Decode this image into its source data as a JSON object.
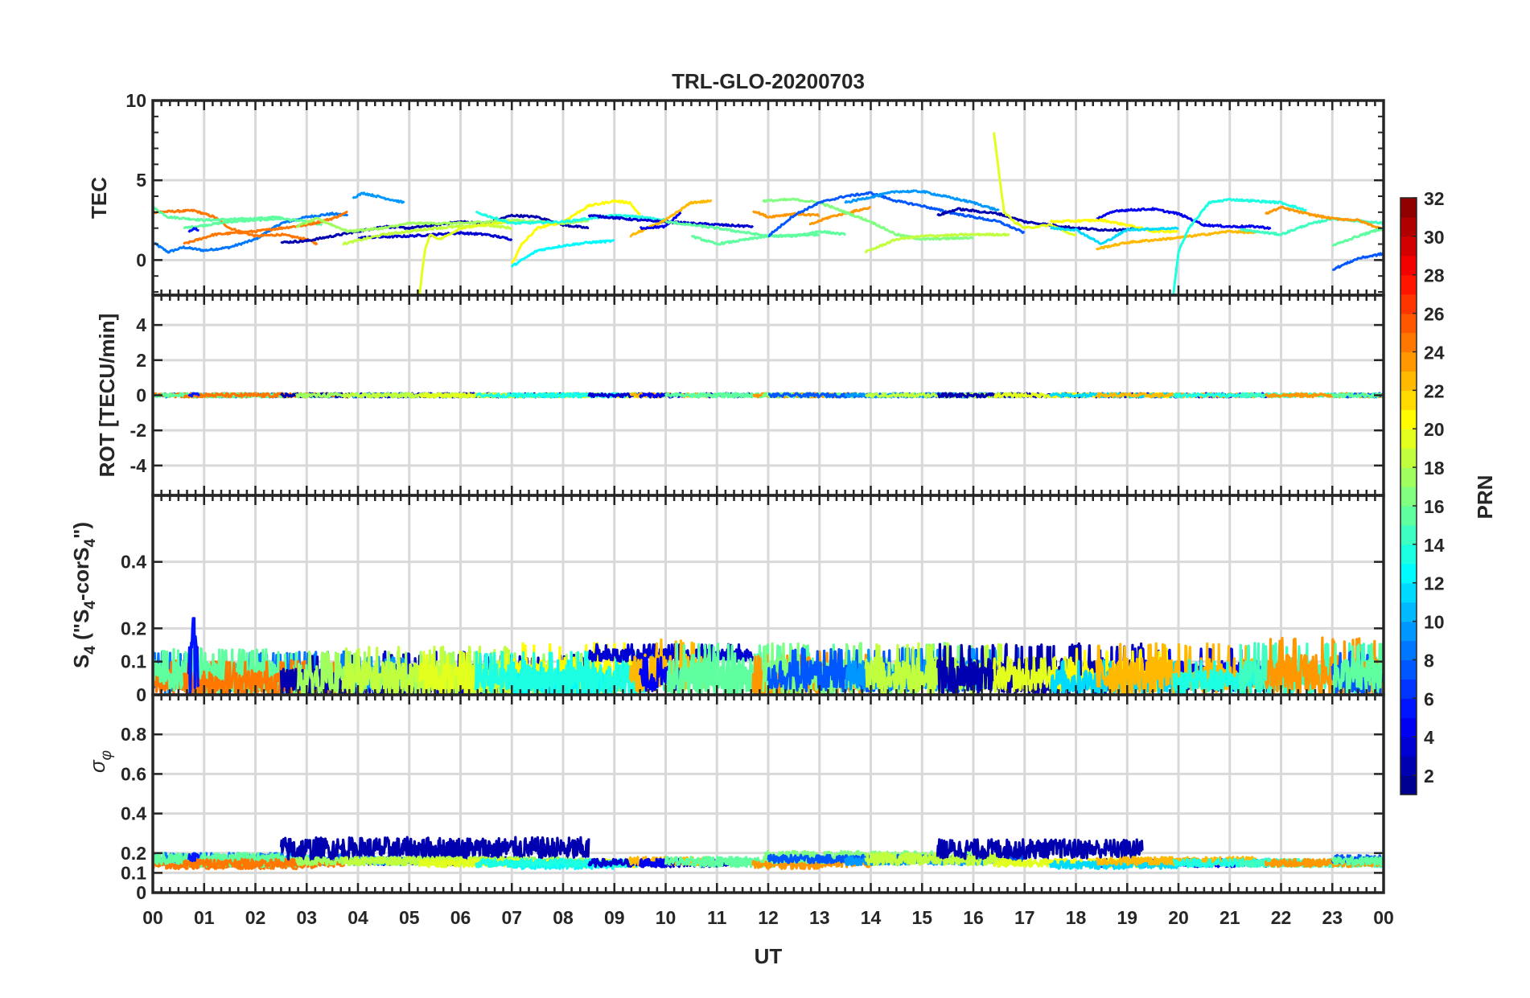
{
  "title": "TRL-GLO-20200703",
  "xlabel": "UT",
  "x_ticks": [
    "00",
    "01",
    "02",
    "03",
    "04",
    "05",
    "06",
    "07",
    "08",
    "09",
    "10",
    "11",
    "12",
    "13",
    "14",
    "15",
    "16",
    "17",
    "18",
    "19",
    "20",
    "21",
    "22",
    "23",
    "00"
  ],
  "colorbar": {
    "label": "PRN",
    "clim": [
      1,
      32
    ],
    "levels": 31,
    "colormap": "jet",
    "ticks": [
      "2",
      "4",
      "6",
      "8",
      "10",
      "12",
      "14",
      "16",
      "18",
      "20",
      "22",
      "24",
      "26",
      "28",
      "30",
      "32"
    ]
  },
  "chart_data": [
    {
      "type": "line",
      "name": "TEC",
      "ylabel": "TEC",
      "ylim": [
        -2.2,
        10
      ],
      "yticks": [
        0,
        5,
        10
      ],
      "ytick_labels": [
        "0",
        "5",
        "10"
      ],
      "xlim": [
        0,
        24
      ],
      "grid": true
    },
    {
      "type": "line",
      "name": "ROT",
      "ylabel": "ROT [TECU/min]",
      "ylim": [
        -5.7,
        5.7
      ],
      "yticks": [
        -4,
        -2,
        0,
        2,
        4
      ],
      "ytick_labels": [
        "-4",
        "-2",
        "0",
        "2",
        "4"
      ],
      "xlim": [
        0,
        24
      ],
      "grid": true
    },
    {
      "type": "line",
      "name": "S4",
      "ylabel_parts": [
        "S",
        "4",
        " (\"S",
        "4",
        "-corS",
        "4",
        "\")"
      ],
      "ylim": [
        0,
        0.6
      ],
      "yticks": [
        0,
        0.1,
        0.2,
        0.4
      ],
      "ytick_labels": [
        "0",
        "0.1",
        "0.2",
        "0.4"
      ],
      "xlim": [
        0,
        24
      ],
      "grid": true
    },
    {
      "type": "line",
      "name": "sigma_phi",
      "ylabel_parts": [
        "σ",
        "φ"
      ],
      "ylim": [
        0,
        1
      ],
      "yticks": [
        0,
        0.1,
        0.2,
        0.4,
        0.6,
        0.8
      ],
      "ytick_labels": [
        "0",
        "0.1",
        "0.2",
        "0.4",
        "0.6",
        "0.8"
      ],
      "xlim": [
        0,
        24
      ],
      "grid": true
    }
  ],
  "arcs": [
    {
      "prn": 8,
      "tec": [
        [
          0,
          1.1
        ],
        [
          0.3,
          0.5
        ],
        [
          0.6,
          0.8
        ],
        [
          1.0,
          0.6
        ],
        [
          1.5,
          0.8
        ],
        [
          2.0,
          1.3
        ],
        [
          2.5,
          2.3
        ],
        [
          3.0,
          2.7
        ],
        [
          3.5,
          2.9
        ],
        [
          3.8,
          2.8
        ]
      ],
      "s4": [
        0.05,
        0.05
      ],
      "sigma": [
        0.17,
        0.03
      ]
    },
    {
      "prn": 24,
      "tec": [
        [
          0,
          3.0
        ],
        [
          0.8,
          3.1
        ],
        [
          1.2,
          2.7
        ],
        [
          1.5,
          2.0
        ],
        [
          2,
          1.5
        ],
        [
          2.5,
          1.6
        ],
        [
          3,
          1.3
        ],
        [
          3.2,
          1.0
        ]
      ],
      "s4": [
        0.04,
        0.04
      ],
      "sigma": [
        0.14,
        0.02
      ]
    },
    {
      "prn": 15,
      "tec": [
        [
          0,
          3.3
        ],
        [
          0.3,
          2.7
        ],
        [
          1,
          2.5
        ],
        [
          2,
          2.6
        ],
        [
          2.5,
          2.7
        ]
      ],
      "s4": [
        0.06,
        0.05
      ],
      "sigma": [
        0.17,
        0.03
      ]
    },
    {
      "prn": 15,
      "tec": [
        [
          0.6,
          2.0
        ],
        [
          1.5,
          2.4
        ],
        [
          2.5,
          2.6
        ],
        [
          3,
          2.4
        ],
        [
          3.3,
          2.2
        ]
      ],
      "s4": [
        0.05,
        0.05
      ],
      "sigma": [
        0.16,
        0.03
      ]
    },
    {
      "prn": 24,
      "tec": [
        [
          0.6,
          1.0
        ],
        [
          1.2,
          1.6
        ],
        [
          2,
          1.8
        ],
        [
          3,
          2.2
        ],
        [
          3.5,
          2.6
        ],
        [
          3.8,
          3.0
        ]
      ],
      "s4": [
        0.04,
        0.04
      ],
      "sigma": [
        0.15,
        0.02
      ]
    },
    {
      "prn": 5,
      "tec": [
        [
          0.7,
          1.8
        ],
        [
          0.8,
          2.0
        ],
        [
          0.9,
          1.9
        ]
      ],
      "s4": [
        0.1,
        0.12
      ],
      "sigma": [
        0.18,
        0.02
      ]
    },
    {
      "prn": 2,
      "tec": [
        [
          2.5,
          1.1
        ],
        [
          3,
          1.2
        ],
        [
          3.5,
          1.5
        ],
        [
          4,
          1.8
        ],
        [
          4.5,
          2.1
        ],
        [
          5,
          2.0
        ],
        [
          5.5,
          2.2
        ],
        [
          6,
          2.4
        ],
        [
          6.5,
          2.3
        ],
        [
          7,
          2.8
        ],
        [
          7.5,
          2.7
        ],
        [
          8,
          2.2
        ],
        [
          8.5,
          2.0
        ]
      ],
      "s4": [
        0.04,
        0.05
      ],
      "sigma": [
        0.22,
        0.06
      ]
    },
    {
      "prn": 3,
      "tec": [
        [
          4,
          1.4
        ],
        [
          5,
          1.5
        ],
        [
          6,
          1.7
        ],
        [
          6.5,
          1.6
        ],
        [
          7,
          1.3
        ]
      ],
      "s4": [
        0.05,
        0.05
      ],
      "sigma": [
        0.16,
        0.02
      ]
    },
    {
      "prn": 9,
      "tec": [
        [
          3.9,
          3.9
        ],
        [
          4.1,
          4.2
        ],
        [
          4.5,
          3.9
        ],
        [
          4.9,
          3.6
        ]
      ],
      "s4": [
        0.05,
        0.04
      ],
      "sigma": [
        0.16,
        0.02
      ]
    },
    {
      "prn": 17,
      "tec": [
        [
          2.8,
          2.1
        ],
        [
          3.2,
          2.6
        ],
        [
          3.8,
          1.8
        ],
        [
          4.5,
          2.0
        ],
        [
          5.0,
          2.3
        ],
        [
          6,
          2.3
        ],
        [
          7,
          2.5
        ],
        [
          8,
          2.3
        ],
        [
          8.5,
          2.5
        ]
      ],
      "s4": [
        0.05,
        0.05
      ],
      "sigma": [
        0.16,
        0.02
      ]
    },
    {
      "prn": 18,
      "tec": [
        [
          3.7,
          1.0
        ],
        [
          4.5,
          1.6
        ],
        [
          5.5,
          2.0
        ],
        [
          6.5,
          2.2
        ],
        [
          7,
          2.0
        ]
      ],
      "s4": [
        0.05,
        0.06
      ],
      "sigma": [
        0.16,
        0.02
      ]
    },
    {
      "prn": 19,
      "tec": [
        [
          5.2,
          -2.2
        ],
        [
          5.3,
          0.5
        ],
        [
          5.4,
          1.6
        ],
        [
          5.6,
          1.3
        ],
        [
          6,
          2.0
        ],
        [
          6.5,
          2.2
        ],
        [
          7,
          2.4
        ]
      ],
      "s4": [
        0.05,
        0.05
      ],
      "sigma": [
        0.15,
        0.02
      ]
    },
    {
      "prn": 20,
      "tec": [
        [
          7,
          -0.2
        ],
        [
          7.2,
          1.0
        ],
        [
          7.5,
          2.0
        ],
        [
          8,
          2.4
        ],
        [
          8.5,
          3.4
        ],
        [
          9,
          3.7
        ],
        [
          9.3,
          3.6
        ],
        [
          9.5,
          2.8
        ]
      ],
      "s4": [
        0.06,
        0.06
      ],
      "sigma": [
        0.15,
        0.02
      ]
    },
    {
      "prn": 12,
      "tec": [
        [
          7,
          -0.4
        ],
        [
          7.5,
          0.6
        ],
        [
          8,
          0.9
        ],
        [
          8.5,
          1.1
        ],
        [
          9,
          1.2
        ]
      ],
      "s4": [
        0.04,
        0.04
      ],
      "sigma": [
        0.14,
        0.02
      ]
    },
    {
      "prn": 13,
      "tec": [
        [
          6.3,
          3.0
        ],
        [
          7,
          2.3
        ],
        [
          8,
          2.4
        ],
        [
          8.5,
          2.6
        ],
        [
          9,
          2.8
        ],
        [
          9.5,
          2.7
        ],
        [
          10,
          2.5
        ]
      ],
      "s4": [
        0.05,
        0.05
      ],
      "sigma": [
        0.15,
        0.02
      ]
    },
    {
      "prn": 3,
      "tec": [
        [
          8.5,
          2.8
        ],
        [
          9.5,
          2.5
        ],
        [
          10.5,
          2.3
        ],
        [
          11.7,
          2.1
        ]
      ],
      "s4": [
        0.12,
        0.02
      ],
      "sigma": [
        0.15,
        0.02
      ]
    },
    {
      "prn": 22,
      "tec": [
        [
          9.3,
          1.5
        ],
        [
          10,
          2.5
        ],
        [
          10.5,
          3.6
        ],
        [
          10.9,
          3.7
        ]
      ],
      "s4": [
        0.07,
        0.06
      ],
      "sigma": [
        0.16,
        0.02
      ]
    },
    {
      "prn": 4,
      "tec": [
        [
          9.5,
          2.0
        ],
        [
          10,
          2.1
        ],
        [
          10.3,
          3.0
        ]
      ],
      "s4": [
        0.05,
        0.04
      ],
      "sigma": [
        0.15,
        0.02
      ]
    },
    {
      "prn": 15,
      "tec": [
        [
          10,
          2.4
        ],
        [
          11,
          2.0
        ],
        [
          12,
          1.5
        ],
        [
          12.5,
          1.5
        ],
        [
          13,
          1.8
        ],
        [
          13.5,
          1.6
        ]
      ],
      "s4": [
        0.06,
        0.06
      ],
      "sigma": [
        0.16,
        0.02
      ]
    },
    {
      "prn": 15,
      "tec": [
        [
          10.5,
          1.5
        ],
        [
          11,
          1.0
        ],
        [
          12,
          1.5
        ],
        [
          13,
          1.6
        ]
      ],
      "s4": [
        0.05,
        0.05
      ],
      "sigma": [
        0.15,
        0.02
      ]
    },
    {
      "prn": 23,
      "tec": [
        [
          11.7,
          3.1
        ],
        [
          12,
          2.7
        ],
        [
          12.5,
          2.9
        ],
        [
          13,
          2.8
        ]
      ],
      "s4": [
        0.04,
        0.05
      ],
      "sigma": [
        0.14,
        0.02
      ]
    },
    {
      "prn": 23,
      "tec": [
        [
          12.8,
          2.2
        ],
        [
          13.2,
          2.7
        ],
        [
          14,
          3.3
        ]
      ],
      "s4": [
        0.05,
        0.05
      ],
      "sigma": [
        0.15,
        0.02
      ]
    },
    {
      "prn": 16,
      "tec": [
        [
          11.9,
          3.7
        ],
        [
          12.5,
          3.8
        ],
        [
          13,
          3.6
        ],
        [
          13.5,
          3.0
        ],
        [
          14,
          2.4
        ],
        [
          14.5,
          1.6
        ],
        [
          15,
          1.3
        ],
        [
          16,
          1.4
        ]
      ],
      "s4": [
        0.06,
        0.06
      ],
      "sigma": [
        0.18,
        0.03
      ]
    },
    {
      "prn": 7,
      "tec": [
        [
          12,
          1.5
        ],
        [
          12.5,
          2.8
        ],
        [
          13,
          3.6
        ],
        [
          13.5,
          4.0
        ],
        [
          14,
          4.2
        ],
        [
          14.5,
          3.7
        ],
        [
          15,
          3.4
        ],
        [
          15.5,
          3.0
        ],
        [
          16,
          2.7
        ],
        [
          16.5,
          2.4
        ],
        [
          17,
          1.7
        ]
      ],
      "s4": [
        0.06,
        0.05
      ],
      "sigma": [
        0.17,
        0.02
      ]
    },
    {
      "prn": 9,
      "tec": [
        [
          13.5,
          3.6
        ],
        [
          14.5,
          4.3
        ],
        [
          15,
          4.3
        ],
        [
          16,
          3.6
        ],
        [
          16.5,
          3.1
        ]
      ],
      "s4": [
        0.06,
        0.05
      ],
      "sigma": [
        0.16,
        0.02
      ]
    },
    {
      "prn": 18,
      "tec": [
        [
          13.9,
          0.5
        ],
        [
          14.5,
          1.3
        ],
        [
          15,
          1.5
        ],
        [
          16,
          1.6
        ],
        [
          16.7,
          1.6
        ]
      ],
      "s4": [
        0.06,
        0.06
      ],
      "sigma": [
        0.17,
        0.03
      ]
    },
    {
      "prn": 2,
      "tec": [
        [
          15.3,
          2.8
        ],
        [
          15.7,
          3.2
        ],
        [
          16.5,
          2.9
        ],
        [
          17,
          2.4
        ],
        [
          17.5,
          2.2
        ],
        [
          18,
          2.0
        ],
        [
          18.5,
          1.9
        ],
        [
          19,
          1.9
        ],
        [
          19.3,
          2.0
        ]
      ],
      "s4": [
        0.06,
        0.06
      ],
      "sigma": [
        0.22,
        0.05
      ]
    },
    {
      "prn": 19,
      "tec": [
        [
          16.4,
          8.0
        ],
        [
          16.5,
          5.5
        ],
        [
          16.6,
          3.0
        ],
        [
          16.8,
          2.4
        ],
        [
          17,
          2.0
        ],
        [
          17.5,
          2.2
        ],
        [
          18,
          1.5
        ]
      ],
      "s4": [
        0.05,
        0.04
      ],
      "sigma": [
        0.15,
        0.02
      ]
    },
    {
      "prn": 4,
      "tec": [
        [
          18.4,
          2.6
        ],
        [
          18.8,
          3.1
        ],
        [
          19.5,
          3.2
        ],
        [
          20,
          2.9
        ],
        [
          20.5,
          2.2
        ],
        [
          21,
          2.1
        ],
        [
          21.5,
          2.1
        ],
        [
          21.8,
          2.0
        ]
      ],
      "s4": [
        0.06,
        0.05
      ],
      "sigma": [
        0.15,
        0.02
      ]
    },
    {
      "prn": 20,
      "tec": [
        [
          17.5,
          2.4
        ],
        [
          18.5,
          2.5
        ],
        [
          19,
          2.2
        ],
        [
          19.5,
          1.8
        ],
        [
          20,
          1.8
        ]
      ],
      "s4": [
        0.06,
        0.05
      ],
      "sigma": [
        0.15,
        0.02
      ]
    },
    {
      "prn": 11,
      "tec": [
        [
          17.5,
          2.0
        ],
        [
          18,
          1.9
        ],
        [
          18.5,
          1.0
        ],
        [
          19,
          1.9
        ],
        [
          20,
          2.0
        ]
      ],
      "s4": [
        0.04,
        0.04
      ],
      "sigma": [
        0.14,
        0.02
      ]
    },
    {
      "prn": 22,
      "tec": [
        [
          18.4,
          0.7
        ],
        [
          19,
          1.1
        ],
        [
          20,
          1.4
        ],
        [
          21,
          1.8
        ],
        [
          21.5,
          1.7
        ]
      ],
      "s4": [
        0.06,
        0.06
      ],
      "sigma": [
        0.16,
        0.02
      ]
    },
    {
      "prn": 13,
      "tec": [
        [
          19.9,
          -2.2
        ],
        [
          20,
          0.5
        ],
        [
          20.2,
          2.0
        ],
        [
          20.6,
          3.6
        ],
        [
          21,
          3.8
        ],
        [
          21.5,
          3.7
        ],
        [
          22,
          3.6
        ],
        [
          22.5,
          3.1
        ]
      ],
      "s4": [
        0.04,
        0.04
      ],
      "sigma": [
        0.15,
        0.02
      ]
    },
    {
      "prn": 14,
      "tec": [
        [
          21.2,
          1.9
        ],
        [
          22,
          1.6
        ],
        [
          22.5,
          2.2
        ],
        [
          23,
          2.6
        ],
        [
          24,
          2.3
        ]
      ],
      "s4": [
        0.06,
        0.06
      ],
      "sigma": [
        0.15,
        0.02
      ]
    },
    {
      "prn": 23,
      "tec": [
        [
          21.7,
          2.9
        ],
        [
          22,
          3.3
        ],
        [
          22.5,
          2.9
        ],
        [
          23,
          2.6
        ],
        [
          23.5,
          2.5
        ],
        [
          24,
          1.9
        ]
      ],
      "s4": [
        0.06,
        0.07
      ],
      "sigma": [
        0.15,
        0.02
      ]
    },
    {
      "prn": 7,
      "tec": [
        [
          23,
          -0.6
        ],
        [
          23.5,
          0.1
        ],
        [
          24,
          0.4
        ]
      ],
      "s4": [
        0.05,
        0.05
      ],
      "sigma": [
        0.17,
        0.02
      ]
    },
    {
      "prn": 15,
      "tec": [
        [
          23,
          0.9
        ],
        [
          23.5,
          1.5
        ],
        [
          24,
          2.0
        ]
      ],
      "s4": [
        0.06,
        0.06
      ],
      "sigma": [
        0.16,
        0.02
      ]
    }
  ]
}
